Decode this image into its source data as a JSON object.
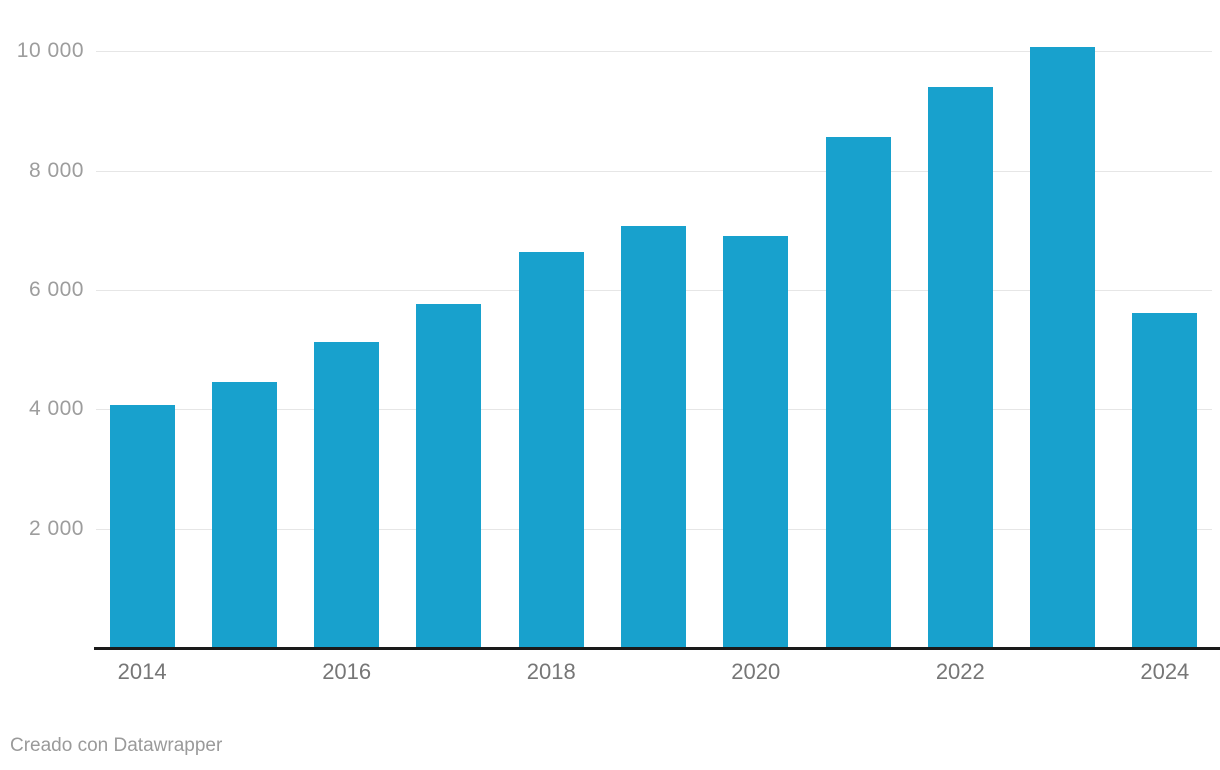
{
  "chart_data": {
    "type": "bar",
    "title": "",
    "xlabel": "",
    "ylabel": "",
    "categories": [
      "2014",
      "2015",
      "2016",
      "2017",
      "2018",
      "2019",
      "2020",
      "2021",
      "2022",
      "2023",
      "2024"
    ],
    "values": [
      4080,
      4450,
      5130,
      5770,
      6630,
      7070,
      6900,
      8570,
      9410,
      10070,
      5620
    ],
    "ylim": [
      0,
      10300
    ],
    "yticks": [
      2000,
      4000,
      6000,
      8000,
      10000
    ],
    "ytick_labels": [
      "2 000",
      "4 000",
      "6 000",
      "8 000",
      "10 000"
    ],
    "xtick_labels": [
      "2014",
      "2016",
      "2018",
      "2020",
      "2022",
      "2024"
    ],
    "xtick_every": 2,
    "grid": "horizontal",
    "legend": "none",
    "bar_color": "#18a1cd"
  },
  "footer": {
    "attribution": "Creado con Datawrapper"
  },
  "colors": {
    "bar": "#18a1cd",
    "gridline": "#e6e6e6",
    "axis_line": "#1a1a1a",
    "ytick_text": "#9d9d9d",
    "xtick_text": "#767676",
    "footer_text": "#9a9a9a",
    "background": "#ffffff"
  }
}
